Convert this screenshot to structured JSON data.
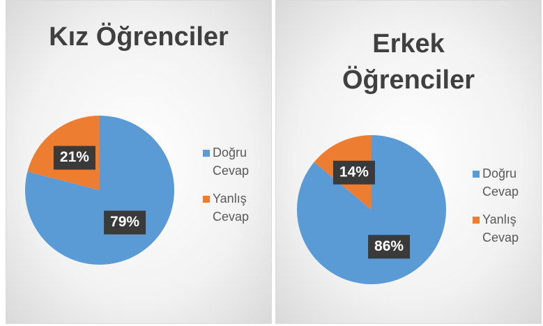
{
  "chart_data": [
    {
      "type": "pie",
      "title": "Kız Öğrenciler",
      "categories": [
        "Doğru Cevap",
        "Yanlış Cevap"
      ],
      "values": [
        79,
        21
      ],
      "value_labels": [
        "79%",
        "21%"
      ],
      "colors": [
        "#5b9bd5",
        "#ed7d31"
      ],
      "legend": "right"
    },
    {
      "type": "pie",
      "title": "Erkek Öğrenciler",
      "categories": [
        "Doğru Cevap",
        "Yanlış Cevap"
      ],
      "values": [
        86,
        14
      ],
      "value_labels": [
        "86%",
        "14%"
      ],
      "colors": [
        "#5b9bd5",
        "#ed7d31"
      ],
      "legend": "right"
    }
  ]
}
